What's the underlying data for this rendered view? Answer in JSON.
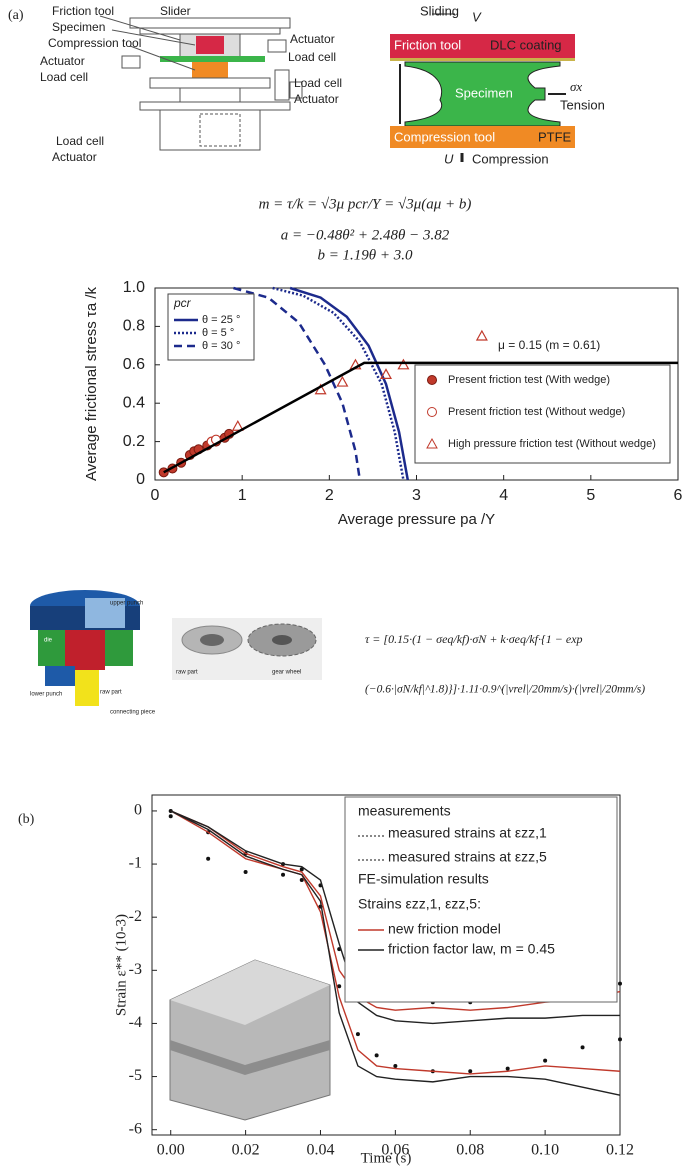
{
  "labels": {
    "a": "(a)",
    "b": "(b)"
  },
  "apparatus": {
    "friction_tool": "Friction tool",
    "slider": "Slider",
    "specimen": "Specimen",
    "compression_tool": "Compression tool",
    "actuator_left": "Actuator",
    "load_cell_left": "Load cell",
    "actuator_right": "Actuator",
    "load_cell_right": "Load cell",
    "load_cell_right_lower": "Load cell",
    "actuator_right_lower": "Actuator",
    "load_cell_bottom": "Load cell",
    "actuator_bottom": "Actuator"
  },
  "contact_diagram": {
    "sliding": "Sliding",
    "velocity": "V",
    "friction_tool": "Friction tool",
    "coating": "DLC coating",
    "specimen": "Specimen",
    "stress": "σx",
    "tension": "Tension",
    "compression_tool": "Compression tool",
    "ptfe": "PTFE",
    "displacement": "U",
    "compression": "Compression"
  },
  "equations": {
    "m": "m = τ/k = √3μ pcr/Y = √3μ(aμ + b)",
    "a": "a = −0.48θ² + 2.48θ − 3.82",
    "b": "b = 1.19θ + 3.0"
  },
  "forming": {
    "upper_punch": "upper punch",
    "die": "die",
    "lower_punch": "lower punch",
    "raw_part_tool": "raw part",
    "connecting_piece": "connecting piece",
    "raw_part": "raw part",
    "gear_wheel": "gear wheel",
    "equation": [
      "τ = [0.15·(1 − σeq/kf)·σN + k·σeq/kf·{1 − exp",
      "(−0.6·|σN/kf|^1.8)}]·1.11·0.9^(|vrel|/20mm/s)·(|vrel|/20mm/s)"
    ]
  },
  "chart_data": [
    {
      "type": "scatter",
      "xlabel": "Average pressure  pa /Y",
      "ylabel": "Average frictional stress  τa /k",
      "xlim": [
        0,
        6
      ],
      "ylim": [
        0,
        1
      ],
      "xticks": [
        0,
        1,
        2,
        3,
        4,
        5,
        6
      ],
      "yticks": [
        0,
        0.2,
        0.4,
        0.6,
        0.8,
        {
          "value": 1,
          "label": "1.0"
        }
      ],
      "legend_title": "pcr",
      "annotation": "μ = 0.15 (m = 0.61)",
      "series": [
        {
          "name": "θ = 25 °",
          "color": "#1c2a8c",
          "style": "solid",
          "x": [
            1.55,
            1.9,
            2.2,
            2.45,
            2.65,
            2.8,
            2.9
          ],
          "values": [
            1.0,
            0.95,
            0.85,
            0.7,
            0.5,
            0.25,
            0
          ]
        },
        {
          "name": "θ = 5 °",
          "color": "#1c2a8c",
          "style": "dotted",
          "x": [
            1.35,
            1.7,
            2.05,
            2.35,
            2.6,
            2.75,
            2.85
          ],
          "values": [
            1.0,
            0.96,
            0.87,
            0.72,
            0.5,
            0.25,
            0
          ]
        },
        {
          "name": "θ = 30 °",
          "color": "#1c2a8c",
          "style": "dashed",
          "x": [
            0.9,
            1.3,
            1.65,
            1.95,
            2.15,
            2.3,
            2.35
          ],
          "values": [
            1.0,
            0.95,
            0.82,
            0.6,
            0.4,
            0.15,
            0
          ]
        },
        {
          "name": "Present friction test (With wedge)",
          "color": "#c0392b",
          "marker": "filled-circle",
          "x": [
            0.1,
            0.2,
            0.3,
            0.4,
            0.45,
            0.5,
            0.6,
            0.7,
            0.8,
            0.85
          ],
          "values": [
            0.04,
            0.06,
            0.09,
            0.13,
            0.15,
            0.16,
            0.18,
            0.2,
            0.22,
            0.24
          ]
        },
        {
          "name": "Present friction test (Without wedge)",
          "color": "#c0392b",
          "marker": "open-circle",
          "x": [
            0.65,
            0.7
          ],
          "values": [
            0.2,
            0.21
          ]
        },
        {
          "name": "High pressure friction test (Without wedge)",
          "color": "#c0392b",
          "marker": "open-triangle",
          "x": [
            0.95,
            1.9,
            2.15,
            2.3,
            2.65,
            2.85,
            3.75
          ],
          "values": [
            0.28,
            0.47,
            0.51,
            0.6,
            0.55,
            0.6,
            0.75
          ]
        },
        {
          "color": "#000000",
          "style": "solid",
          "x": [
            0.1,
            2.4,
            6
          ],
          "values": [
            0.04,
            0.61,
            0.61
          ]
        }
      ]
    },
    {
      "type": "line",
      "xlabel": "Time (s)",
      "ylabel": "Strain ε** (10-3)",
      "xlim": [
        -0.005,
        0.12
      ],
      "ylim": [
        -6.1,
        0.3
      ],
      "xticks": [
        {
          "value": 0,
          "label": "0.00"
        },
        {
          "value": 0.02,
          "label": "0.02"
        },
        {
          "value": 0.04,
          "label": "0.04"
        },
        {
          "value": 0.06,
          "label": "0.06"
        },
        {
          "value": 0.08,
          "label": "0.08"
        },
        {
          "value": 0.1,
          "label": "0.10"
        },
        {
          "value": 0.12,
          "label": "0.12"
        }
      ],
      "yticks": [
        0,
        -1,
        -2,
        -3,
        -4,
        -5,
        -6
      ],
      "x": [
        0,
        0.01,
        0.02,
        0.03,
        0.035,
        0.04,
        0.045,
        0.05,
        0.055,
        0.06,
        0.07,
        0.08,
        0.09,
        0.1,
        0.11,
        0.12
      ],
      "legend": {
        "measurements": "measurements",
        "measured_1": "measured strains at εzz,1",
        "measured_5": "measured strains at εzz,5",
        "simulation": "FE-simulation results",
        "strains": "Strains εzz,1, εzz,5:",
        "new_model": "new friction model",
        "factor_law": "friction factor law, m = 0.45"
      },
      "series": [
        {
          "color": "#111111",
          "marker": "dot",
          "values": [
            0,
            -0.4,
            -0.8,
            -1.0,
            -1.1,
            -1.4,
            -2.6,
            -3.2,
            -3.45,
            -3.55,
            -3.6,
            -3.6,
            -3.55,
            -3.5,
            -3.4,
            -3.25
          ]
        },
        {
          "color": "#111111",
          "marker": "dot",
          "values": [
            -0.1,
            -0.9,
            -1.15,
            -1.2,
            -1.3,
            -1.8,
            -3.3,
            -4.2,
            -4.6,
            -4.8,
            -4.9,
            -4.9,
            -4.85,
            -4.7,
            -4.45,
            -4.3
          ]
        },
        {
          "color": "#c0392b",
          "style": "solid",
          "values": [
            0,
            -0.3,
            -0.8,
            -1.05,
            -1.15,
            -1.6,
            -3.0,
            -3.5,
            -3.7,
            -3.75,
            -3.7,
            -3.75,
            -3.7,
            -3.6,
            -3.55,
            -3.4
          ]
        },
        {
          "color": "#c0392b",
          "style": "solid",
          "values": [
            0,
            -0.4,
            -0.9,
            -1.1,
            -1.2,
            -1.9,
            -3.5,
            -4.5,
            -4.8,
            -4.85,
            -4.9,
            -4.95,
            -4.9,
            -4.8,
            -4.85,
            -4.9
          ]
        },
        {
          "color": "#222222",
          "style": "solid",
          "values": [
            0,
            -0.3,
            -0.75,
            -1.0,
            -1.05,
            -1.3,
            -2.5,
            -3.6,
            -3.85,
            -3.95,
            -4.0,
            -3.95,
            -3.9,
            -3.9,
            -3.85,
            -3.85
          ]
        },
        {
          "color": "#222222",
          "style": "solid",
          "values": [
            0,
            -0.35,
            -0.85,
            -1.1,
            -1.2,
            -1.7,
            -3.8,
            -4.8,
            -5.0,
            -5.05,
            -5.1,
            -5.0,
            -5.0,
            -5.05,
            -5.2,
            -5.35
          ]
        }
      ]
    }
  ]
}
